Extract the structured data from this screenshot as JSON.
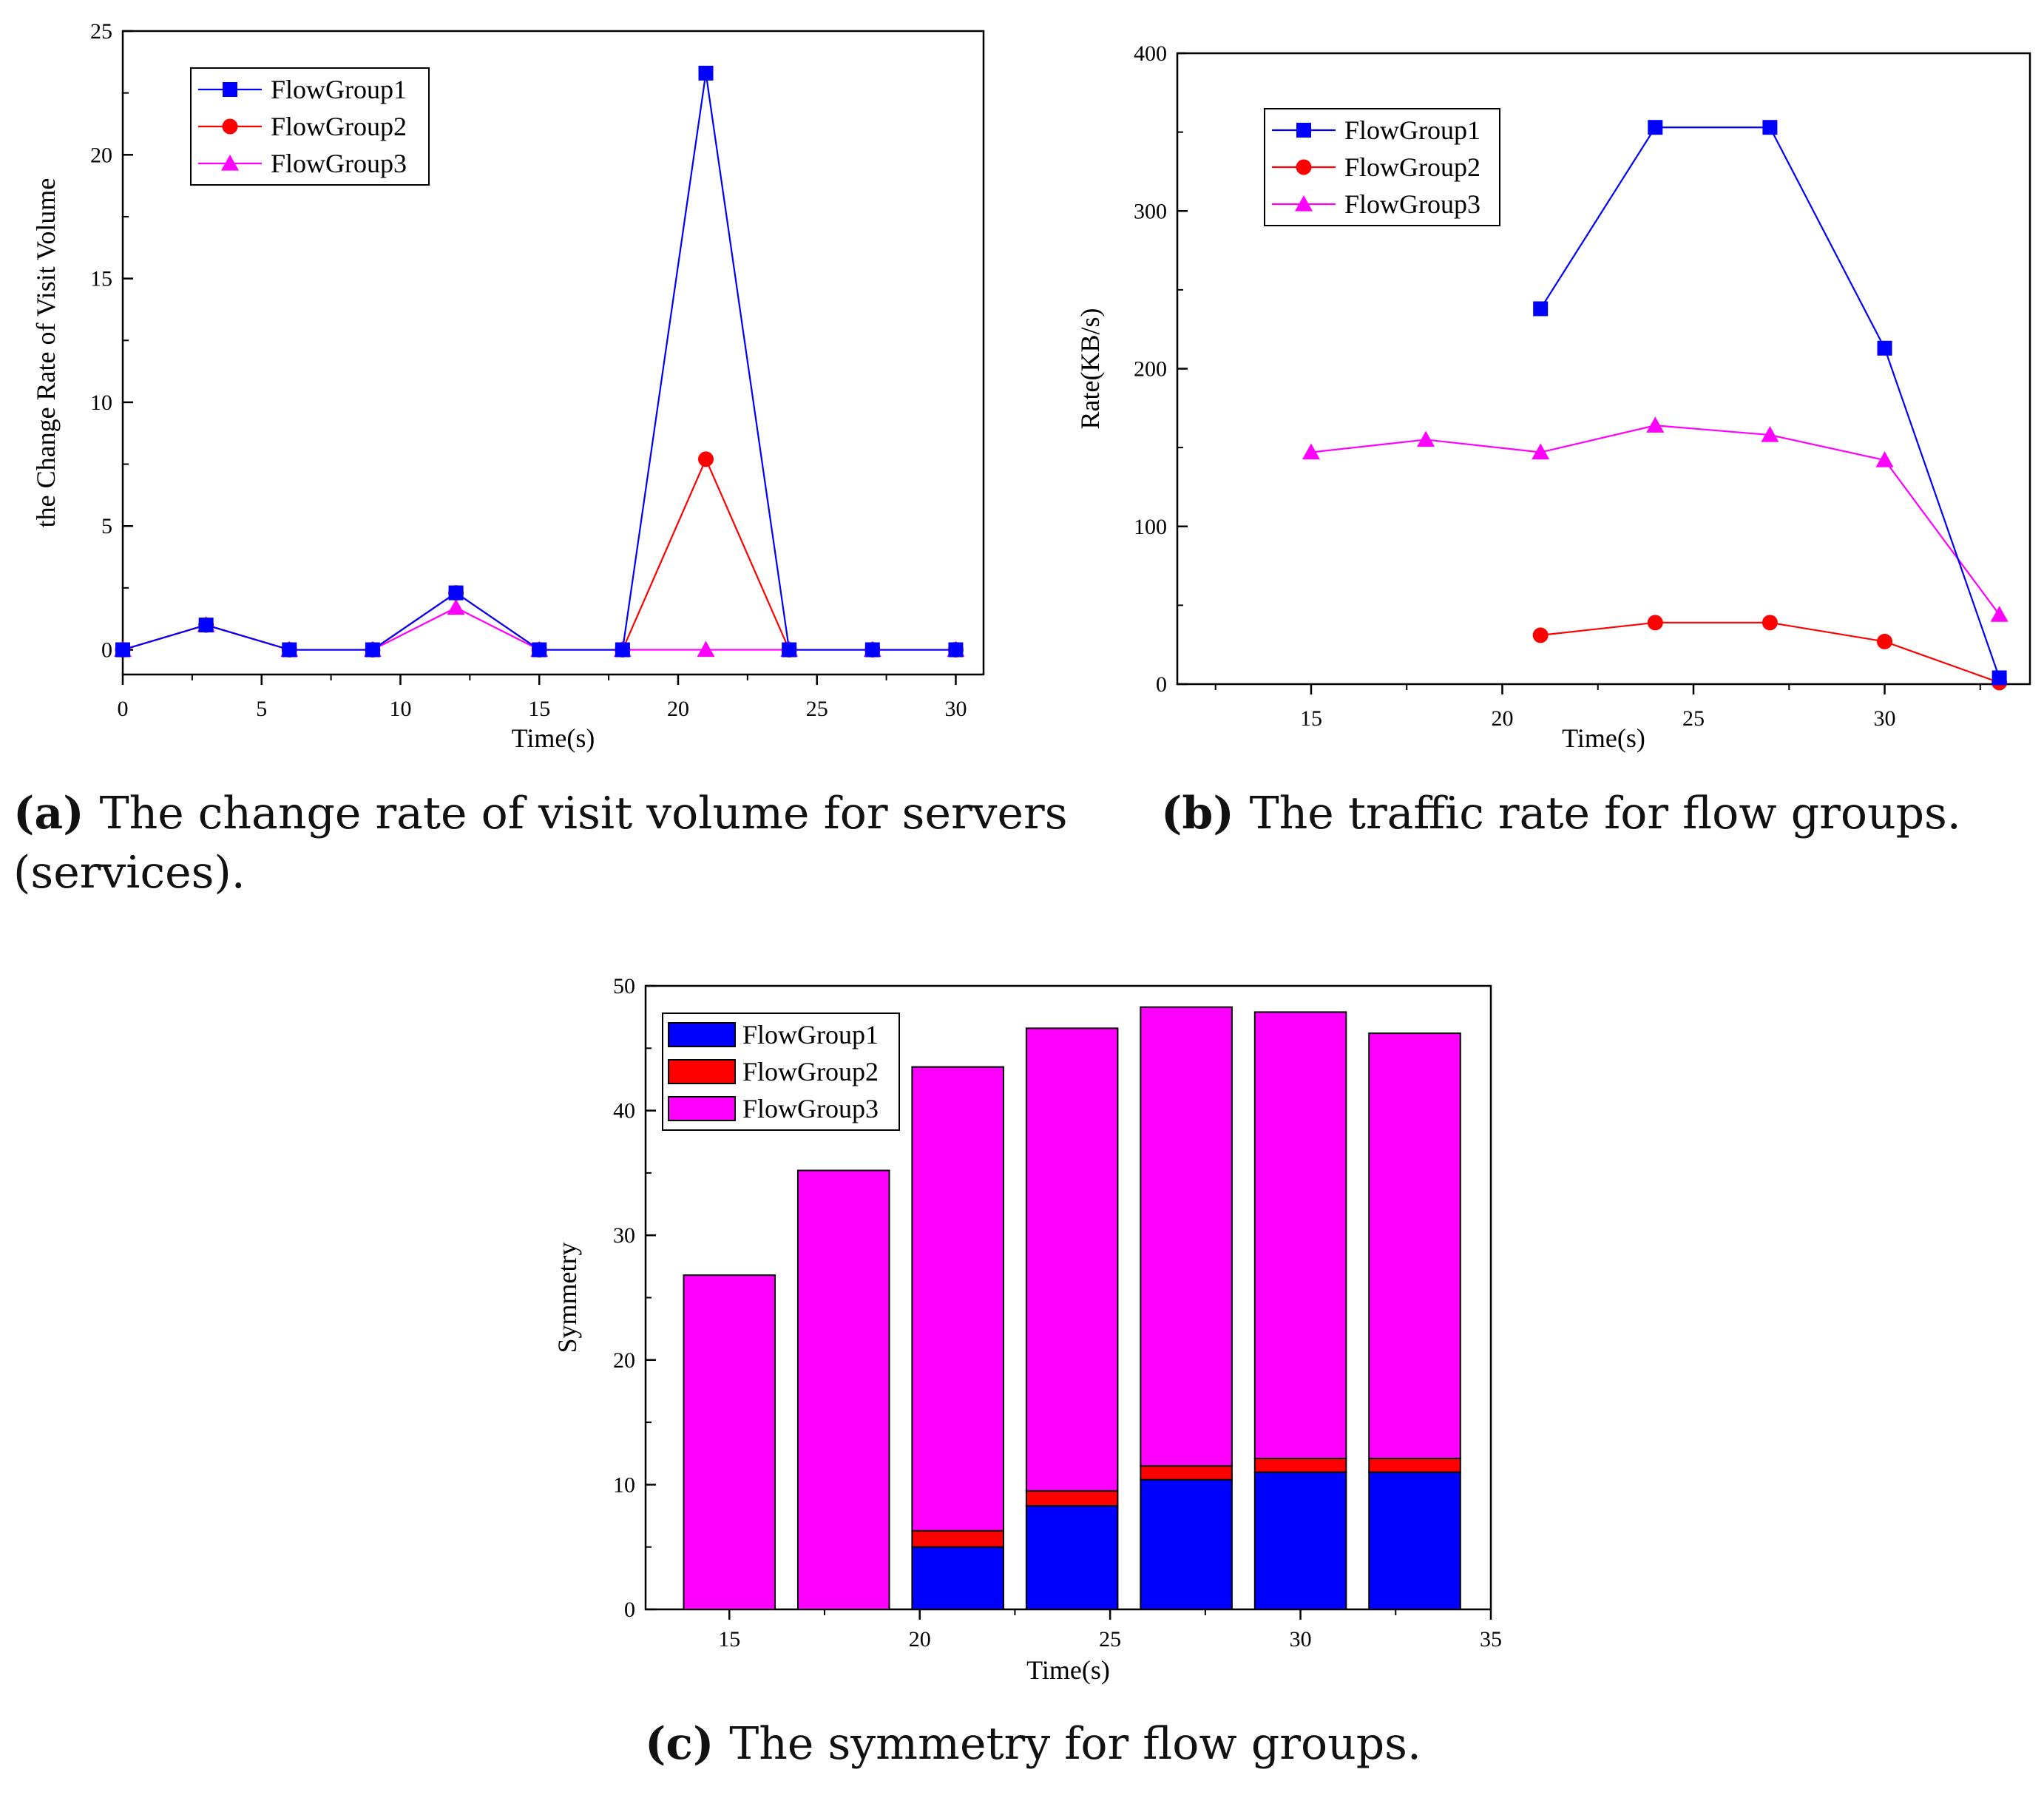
{
  "captions": {
    "a_letter": "a",
    "a_text": "The change rate of visit volume for servers",
    "a_text2": "(services).",
    "b_letter": "b",
    "b_text": "The traffic rate for flow groups.",
    "c_letter": "c",
    "c_text": "The symmetry for flow groups."
  },
  "chart_data": [
    {
      "id": "a",
      "type": "line",
      "title": "",
      "xlabel": "Time(s)",
      "ylabel": "the Change Rate of Visit Volume",
      "xlim": [
        0,
        31
      ],
      "ylim": [
        -1,
        25
      ],
      "xticks": [
        0,
        5,
        10,
        15,
        20,
        25,
        30
      ],
      "yticks": [
        0,
        5,
        10,
        15,
        20,
        25
      ],
      "legend_position": "top-left",
      "series": [
        {
          "name": "FlowGroup1",
          "color": "#0000ff",
          "marker": "square",
          "x": [
            0,
            3,
            6,
            9,
            12,
            15,
            18,
            21,
            24,
            27,
            30
          ],
          "y": [
            0,
            1,
            0,
            0,
            2.3,
            0,
            0,
            23.3,
            0,
            0,
            0
          ]
        },
        {
          "name": "FlowGroup2",
          "color": "#ff0000",
          "marker": "circle",
          "x": [
            0,
            3,
            6,
            9,
            12,
            15,
            18,
            21,
            24,
            27,
            30
          ],
          "y": [
            0,
            1,
            0,
            0,
            2.3,
            0,
            0,
            7.7,
            0,
            0,
            0
          ]
        },
        {
          "name": "FlowGroup3",
          "color": "#ff00ff",
          "marker": "triangle",
          "x": [
            0,
            3,
            6,
            9,
            12,
            15,
            18,
            21,
            24,
            27,
            30
          ],
          "y": [
            0,
            1,
            0,
            0,
            1.7,
            0,
            0,
            0,
            0,
            0,
            0
          ]
        }
      ]
    },
    {
      "id": "b",
      "type": "line",
      "title": "",
      "xlabel": "Time(s)",
      "ylabel": "Rate(KB/s)",
      "xlim": [
        11.5,
        33.8
      ],
      "ylim": [
        0,
        400
      ],
      "xticks": [
        15,
        20,
        25,
        30
      ],
      "yticks": [
        0,
        100,
        200,
        300,
        400
      ],
      "legend_position": "top-left",
      "series": [
        {
          "name": "FlowGroup1",
          "color": "#0000ff",
          "marker": "square",
          "x": [
            21,
            24,
            27,
            30,
            33
          ],
          "y": [
            238,
            353,
            353,
            213,
            4
          ]
        },
        {
          "name": "FlowGroup2",
          "color": "#ff0000",
          "marker": "circle",
          "x": [
            21,
            24,
            27,
            30,
            33
          ],
          "y": [
            31,
            39,
            39,
            27,
            1
          ]
        },
        {
          "name": "FlowGroup3",
          "color": "#ff00ff",
          "marker": "triangle",
          "x": [
            15,
            18,
            21,
            24,
            27,
            30,
            33
          ],
          "y": [
            147,
            155,
            147,
            164,
            158,
            142,
            44
          ]
        }
      ]
    },
    {
      "id": "c",
      "type": "bar",
      "stacked": true,
      "title": "",
      "xlabel": "Time(s)",
      "ylabel": "Symmetry",
      "xlim": [
        12.8,
        35
      ],
      "ylim": [
        0,
        50
      ],
      "xticks": [
        15,
        20,
        25,
        30,
        35
      ],
      "yticks": [
        0,
        10,
        20,
        30,
        40,
        50
      ],
      "bar_width": 2.4,
      "legend_position": "top-left",
      "categories": [
        15,
        18,
        21,
        24,
        27,
        30,
        33
      ],
      "series": [
        {
          "name": "FlowGroup1",
          "color": "#0000ff",
          "values": [
            0,
            0,
            5.0,
            8.3,
            10.4,
            11.0,
            11.0
          ]
        },
        {
          "name": "FlowGroup2",
          "color": "#ff0000",
          "values": [
            0,
            0,
            1.3,
            1.2,
            1.1,
            1.1,
            1.1
          ]
        },
        {
          "name": "FlowGroup3",
          "color": "#ff00ff",
          "values": [
            26.8,
            35.2,
            37.2,
            37.1,
            36.8,
            35.8,
            34.1
          ]
        }
      ]
    }
  ]
}
